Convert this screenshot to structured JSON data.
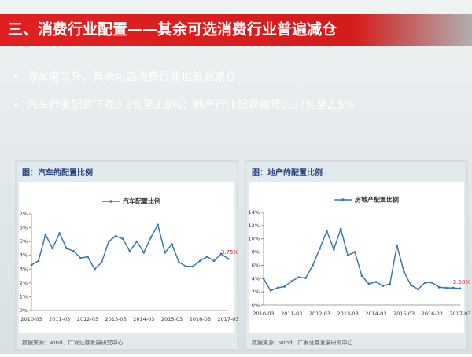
{
  "header": {
    "title": "三、消费行业配置——其余可选消费行业普遍减仓"
  },
  "bullets": [
    "除家电之外，其余可选消费行业也普遍减仓",
    "汽车行业配置下降0.3%至3.8%；地产行业配置微降0.07%至2.5%"
  ],
  "panels": [
    {
      "title": "图：汽车的配置比例",
      "source": "数据来源：wind、广发证券发展研究中心"
    },
    {
      "title": "图：地产的配置比例",
      "source": "数据来源：wind、广发证券发展研究中心"
    }
  ],
  "chart_data": [
    {
      "type": "line",
      "categories": [
        "2010-03",
        null,
        null,
        null,
        "2011-03",
        null,
        null,
        null,
        "2012-03",
        null,
        null,
        null,
        "2013-03",
        null,
        null,
        null,
        "2014-03",
        null,
        null,
        null,
        "2015-03",
        null,
        null,
        null,
        "2016-03",
        null,
        null,
        null,
        "2017-03"
      ],
      "series": [
        {
          "name": "汽车配置比例",
          "color": "#3a77b0",
          "values": [
            3.3,
            3.6,
            5.5,
            4.5,
            5.6,
            4.5,
            4.3,
            3.8,
            3.9,
            3.0,
            3.5,
            5.0,
            5.4,
            5.2,
            4.3,
            5.0,
            4.2,
            5.3,
            6.2,
            4.2,
            4.8,
            3.5,
            3.2,
            3.2,
            3.6,
            3.9,
            3.6,
            4.1,
            3.75
          ],
          "value_labels": [
            null,
            null,
            null,
            null,
            null,
            null,
            null,
            null,
            null,
            null,
            null,
            null,
            null,
            null,
            null,
            null,
            null,
            null,
            null,
            null,
            null,
            null,
            null,
            null,
            null,
            null,
            null,
            null,
            "3.75%"
          ]
        }
      ],
      "ylim": [
        0,
        7
      ],
      "yticks": [
        {
          "value": 0,
          "label": "0%"
        },
        {
          "value": 1,
          "label": "1%"
        },
        {
          "value": 2,
          "label": "2%"
        },
        {
          "value": 3,
          "label": "3%"
        },
        {
          "value": 4,
          "label": "4%"
        },
        {
          "value": 5,
          "label": "5%"
        },
        {
          "value": 6,
          "label": "6%"
        },
        {
          "value": 7,
          "label": "7%"
        }
      ],
      "grid": false
    },
    {
      "type": "line",
      "categories": [
        "2010-03",
        null,
        null,
        null,
        "2011-03",
        null,
        null,
        null,
        "2012-03",
        null,
        null,
        null,
        "2013-03",
        null,
        null,
        null,
        "2014-03",
        null,
        null,
        null,
        "2015-03",
        null,
        null,
        null,
        "2016-03",
        null,
        null,
        null,
        "2017-03"
      ],
      "series": [
        {
          "name": "房地产配置比例",
          "color": "#3a77b0",
          "values": [
            4.0,
            2.2,
            2.6,
            2.8,
            3.6,
            4.2,
            4.1,
            6.0,
            8.5,
            11.2,
            8.4,
            11.5,
            7.5,
            8.0,
            4.4,
            3.2,
            3.5,
            2.9,
            3.2,
            9.0,
            5.0,
            3.0,
            2.4,
            3.4,
            3.4,
            2.7,
            2.6,
            2.6,
            2.5
          ],
          "value_labels": [
            null,
            null,
            null,
            null,
            null,
            null,
            null,
            null,
            null,
            null,
            null,
            null,
            null,
            null,
            null,
            null,
            null,
            null,
            null,
            null,
            null,
            null,
            null,
            null,
            null,
            null,
            null,
            null,
            "2.50%"
          ]
        }
      ],
      "ylim": [
        0,
        14
      ],
      "yticks": [
        {
          "value": 0,
          "label": "0%"
        },
        {
          "value": 2,
          "label": "2%"
        },
        {
          "value": 4,
          "label": "4%"
        },
        {
          "value": 6,
          "label": "6%"
        },
        {
          "value": 8,
          "label": "8%"
        },
        {
          "value": 10,
          "label": "10%"
        },
        {
          "value": 12,
          "label": "12%"
        },
        {
          "value": 14,
          "label": "14%"
        }
      ],
      "grid": false
    }
  ]
}
